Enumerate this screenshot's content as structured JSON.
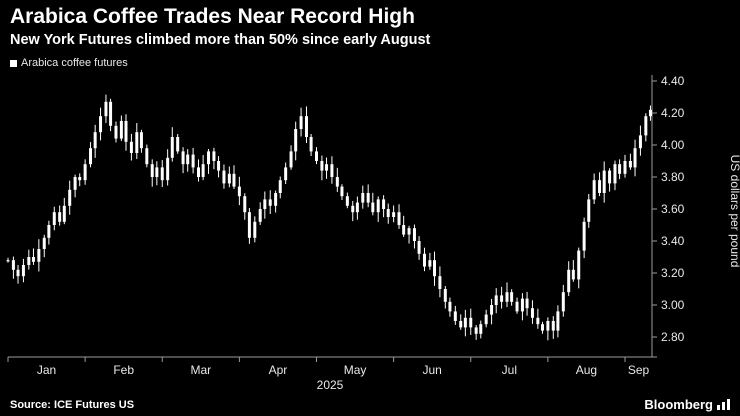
{
  "header": {
    "title": "Arabica Coffee Trades Near Record High",
    "subtitle": "New York Futures climbed more than 50% since early August"
  },
  "legend": {
    "label": "Arabica coffee futures",
    "marker_color": "#ffffff"
  },
  "footer": {
    "source": "Source: ICE Futures US",
    "brand": "Bloomberg"
  },
  "colors": {
    "background": "#000000",
    "candle": "#ffffff",
    "axis": "#9b9b9b",
    "tick_text": "#e8e8e8"
  },
  "chart_data": {
    "type": "candlestick",
    "title": "Arabica Coffee Trades Near Record High",
    "subtitle": "New York Futures climbed more than 50% since early August",
    "ylabel": "US dollars per pound",
    "ylim": [
      2.68,
      4.46
    ],
    "yticks": [
      "4.40",
      "4.20",
      "4.00",
      "3.80",
      "3.60",
      "3.40",
      "3.20",
      "3.00",
      "2.80"
    ],
    "xticks": [
      "Jan",
      "Feb",
      "Mar",
      "Apr",
      "May",
      "Jun",
      "Jul",
      "Aug",
      "Sep"
    ],
    "year_label": "2025",
    "legend_position": "top-left",
    "grid": false,
    "series": [
      {
        "name": "Arabica coffee futures",
        "x_unit": "months from Jan 1 2025",
        "points": [
          [
            0.0,
            3.28
          ],
          [
            0.07,
            3.22
          ],
          [
            0.13,
            3.18
          ],
          [
            0.2,
            3.25
          ],
          [
            0.27,
            3.3
          ],
          [
            0.33,
            3.27
          ],
          [
            0.4,
            3.35
          ],
          [
            0.47,
            3.42
          ],
          [
            0.53,
            3.5
          ],
          [
            0.6,
            3.58
          ],
          [
            0.67,
            3.52
          ],
          [
            0.73,
            3.62
          ],
          [
            0.8,
            3.72
          ],
          [
            0.87,
            3.8
          ],
          [
            0.93,
            3.78
          ],
          [
            1.0,
            3.88
          ],
          [
            1.07,
            3.98
          ],
          [
            1.13,
            4.08
          ],
          [
            1.2,
            4.18
          ],
          [
            1.27,
            4.27
          ],
          [
            1.33,
            4.12
          ],
          [
            1.4,
            4.04
          ],
          [
            1.47,
            4.15
          ],
          [
            1.53,
            4.02
          ],
          [
            1.6,
            3.95
          ],
          [
            1.67,
            4.08
          ],
          [
            1.73,
            3.98
          ],
          [
            1.8,
            3.88
          ],
          [
            1.87,
            3.8
          ],
          [
            1.93,
            3.86
          ],
          [
            2.0,
            3.78
          ],
          [
            2.07,
            3.92
          ],
          [
            2.13,
            4.05
          ],
          [
            2.2,
            3.96
          ],
          [
            2.27,
            3.88
          ],
          [
            2.33,
            3.94
          ],
          [
            2.4,
            3.86
          ],
          [
            2.47,
            3.8
          ],
          [
            2.53,
            3.88
          ],
          [
            2.6,
            3.96
          ],
          [
            2.67,
            3.9
          ],
          [
            2.73,
            3.84
          ],
          [
            2.8,
            3.76
          ],
          [
            2.87,
            3.82
          ],
          [
            2.93,
            3.74
          ],
          [
            3.0,
            3.68
          ],
          [
            3.07,
            3.58
          ],
          [
            3.13,
            3.42
          ],
          [
            3.2,
            3.52
          ],
          [
            3.27,
            3.6
          ],
          [
            3.33,
            3.66
          ],
          [
            3.4,
            3.62
          ],
          [
            3.47,
            3.7
          ],
          [
            3.53,
            3.78
          ],
          [
            3.6,
            3.86
          ],
          [
            3.67,
            3.96
          ],
          [
            3.73,
            4.1
          ],
          [
            3.8,
            4.18
          ],
          [
            3.87,
            4.05
          ],
          [
            3.93,
            3.96
          ],
          [
            4.0,
            3.9
          ],
          [
            4.07,
            3.84
          ],
          [
            4.13,
            3.88
          ],
          [
            4.2,
            3.8
          ],
          [
            4.27,
            3.74
          ],
          [
            4.33,
            3.68
          ],
          [
            4.4,
            3.62
          ],
          [
            4.47,
            3.58
          ],
          [
            4.53,
            3.64
          ],
          [
            4.6,
            3.7
          ],
          [
            4.67,
            3.64
          ],
          [
            4.73,
            3.58
          ],
          [
            4.8,
            3.66
          ],
          [
            4.87,
            3.6
          ],
          [
            4.93,
            3.55
          ],
          [
            5.0,
            3.58
          ],
          [
            5.07,
            3.5
          ],
          [
            5.13,
            3.44
          ],
          [
            5.2,
            3.48
          ],
          [
            5.27,
            3.4
          ],
          [
            5.33,
            3.32
          ],
          [
            5.4,
            3.24
          ],
          [
            5.47,
            3.28
          ],
          [
            5.53,
            3.18
          ],
          [
            5.6,
            3.1
          ],
          [
            5.67,
            3.02
          ],
          [
            5.73,
            2.96
          ],
          [
            5.8,
            2.9
          ],
          [
            5.87,
            2.86
          ],
          [
            5.93,
            2.92
          ],
          [
            6.0,
            2.86
          ],
          [
            6.07,
            2.82
          ],
          [
            6.13,
            2.88
          ],
          [
            6.2,
            2.94
          ],
          [
            6.27,
            3.0
          ],
          [
            6.33,
            3.06
          ],
          [
            6.4,
            3.02
          ],
          [
            6.47,
            3.08
          ],
          [
            6.53,
            3.02
          ],
          [
            6.6,
            2.96
          ],
          [
            6.67,
            3.04
          ],
          [
            6.73,
            2.98
          ],
          [
            6.8,
            2.92
          ],
          [
            6.87,
            2.88
          ],
          [
            6.93,
            2.84
          ],
          [
            7.0,
            2.9
          ],
          [
            7.07,
            2.84
          ],
          [
            7.13,
            2.96
          ],
          [
            7.2,
            3.08
          ],
          [
            7.27,
            3.22
          ],
          [
            7.33,
            3.16
          ],
          [
            7.4,
            3.34
          ],
          [
            7.47,
            3.52
          ],
          [
            7.53,
            3.66
          ],
          [
            7.6,
            3.78
          ],
          [
            7.67,
            3.7
          ],
          [
            7.73,
            3.84
          ],
          [
            7.8,
            3.76
          ],
          [
            7.87,
            3.88
          ],
          [
            7.93,
            3.82
          ],
          [
            8.0,
            3.9
          ],
          [
            8.07,
            3.86
          ],
          [
            8.13,
            3.98
          ],
          [
            8.2,
            4.06
          ],
          [
            8.27,
            4.18
          ],
          [
            8.33,
            4.22
          ]
        ]
      }
    ]
  }
}
